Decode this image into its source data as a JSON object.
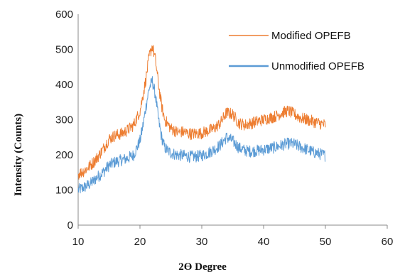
{
  "chart_data": {
    "type": "line",
    "title": "",
    "xlabel": "2Ө Degree",
    "ylabel": "Intensity (Counts)",
    "xlim": [
      10,
      60
    ],
    "ylim": [
      0,
      600
    ],
    "x_ticks": [
      "10",
      "20",
      "30",
      "40",
      "50",
      "60"
    ],
    "y_ticks": [
      "0",
      "100",
      "200",
      "300",
      "400",
      "500",
      "600"
    ],
    "grid": false,
    "legend_position": "top-right",
    "series": [
      {
        "name": "Modified OPEFB",
        "color": "#ED7D31",
        "x": [
          10,
          11,
          12,
          13,
          14,
          15,
          16,
          17,
          18,
          19,
          20,
          20.5,
          21,
          21.5,
          22,
          22.5,
          23,
          23.5,
          24,
          25,
          26,
          27,
          28,
          29,
          30,
          31,
          32,
          33,
          34,
          35,
          36,
          37,
          38,
          39,
          40,
          41,
          42,
          43,
          44,
          45,
          46,
          47,
          48,
          49,
          50
        ],
        "y": [
          145,
          155,
          170,
          190,
          215,
          245,
          255,
          260,
          270,
          285,
          325,
          370,
          420,
          480,
          510,
          470,
          400,
          340,
          300,
          275,
          265,
          265,
          260,
          260,
          262,
          268,
          275,
          290,
          320,
          315,
          290,
          285,
          290,
          295,
          300,
          305,
          310,
          320,
          325,
          315,
          305,
          300,
          295,
          290,
          285
        ]
      },
      {
        "name": "Unmodified OPEFB",
        "color": "#5B9BD5",
        "x": [
          10,
          11,
          12,
          13,
          14,
          15,
          16,
          17,
          18,
          19,
          20,
          20.5,
          21,
          21.5,
          22,
          22.5,
          23,
          23.5,
          24,
          25,
          26,
          27,
          28,
          29,
          30,
          31,
          32,
          33,
          34,
          35,
          36,
          37,
          38,
          39,
          40,
          41,
          42,
          43,
          44,
          45,
          46,
          47,
          48,
          49,
          50
        ],
        "y": [
          100,
          108,
          118,
          135,
          150,
          170,
          180,
          185,
          190,
          200,
          240,
          285,
          340,
          390,
          410,
          370,
          300,
          250,
          220,
          205,
          200,
          198,
          195,
          195,
          198,
          205,
          215,
          228,
          250,
          240,
          220,
          212,
          210,
          212,
          215,
          218,
          222,
          228,
          232,
          230,
          222,
          215,
          208,
          203,
          198
        ]
      }
    ]
  }
}
